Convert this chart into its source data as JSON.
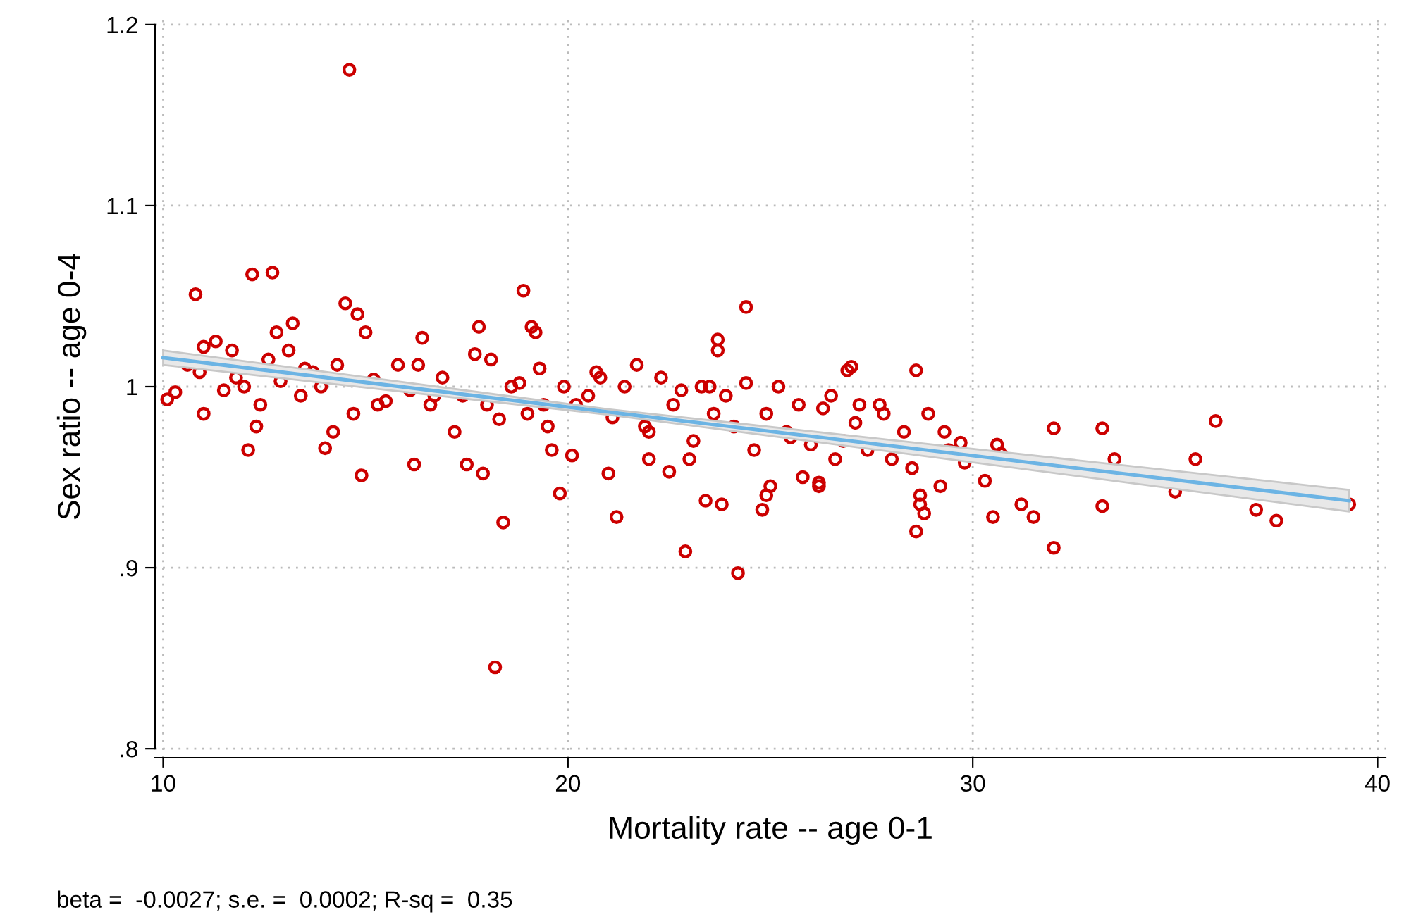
{
  "chart_data": {
    "type": "scatter",
    "xlabel": "Mortality rate -- age 0-1",
    "ylabel": "Sex ratio -- age 0-4",
    "xlim": [
      9.8,
      40.2
    ],
    "xticks": [
      10,
      20,
      30,
      40
    ],
    "ylim": [
      0.795,
      1.205
    ],
    "yticks": [
      {
        "value": 0.8,
        "label": ".8"
      },
      {
        "value": 0.9,
        "label": ".9"
      },
      1,
      1.1,
      1.2
    ],
    "grid": true,
    "annotations": [
      "beta =  -0.0027; s.e. =  0.0002; R-sq =  0.35"
    ],
    "series": [
      {
        "marker": "circle",
        "color": "#cc0000",
        "x": [
          14.6,
          18.2,
          24.2,
          22.9,
          18.4,
          39.3,
          37.0,
          37.5,
          36.0,
          35.5,
          35.0,
          33.2,
          33.5,
          32.0,
          32.0,
          31.5,
          31.2,
          30.6,
          30.7,
          33.2,
          30.5,
          29.7,
          29.3,
          29.2,
          28.7,
          28.7,
          28.8,
          28.6,
          28.6,
          27.0,
          26.9,
          27.2,
          26.2,
          26.2,
          25.8,
          25.0,
          24.9,
          24.8,
          24.4,
          23.7,
          23.7,
          23.4,
          23.8,
          21.2,
          18.9,
          19.2,
          19.1,
          17.8,
          15.0,
          14.8,
          10.1,
          10.3,
          10.8,
          11.0,
          11.0,
          12.2,
          12.7,
          12.1,
          13.2,
          14.5,
          14.9,
          14.0,
          14.2,
          16.2,
          17.5,
          17.9,
          19.8,
          19.6,
          20.1,
          21.0,
          22.0,
          23.0,
          22.5,
          10.6,
          10.9,
          11.3,
          11.5,
          11.8,
          12.0,
          12.4,
          12.6,
          12.9,
          13.1,
          13.4,
          13.7,
          13.9,
          14.3,
          14.7,
          15.2,
          15.5,
          15.8,
          16.1,
          16.4,
          16.6,
          16.9,
          17.2,
          17.4,
          17.7,
          18.0,
          18.3,
          18.6,
          18.8,
          19.0,
          19.3,
          19.5,
          19.9,
          20.2,
          20.5,
          20.8,
          21.1,
          21.4,
          21.7,
          22.0,
          22.3,
          22.6,
          22.8,
          23.1,
          23.3,
          23.6,
          23.9,
          24.1,
          24.4,
          24.6,
          24.9,
          25.2,
          25.4,
          25.7,
          26.0,
          26.3,
          26.5,
          26.8,
          27.1,
          27.4,
          27.7,
          28.0,
          28.3,
          28.5,
          28.9,
          29.4,
          29.8,
          30.3,
          11.7,
          12.8,
          13.5,
          15.3,
          16.7,
          18.1,
          19.4,
          20.7,
          21.9,
          23.5,
          25.5,
          26.6,
          27.8,
          16.3,
          12.3
        ],
        "values": [
          1.175,
          0.845,
          0.897,
          0.909,
          0.925,
          0.935,
          0.932,
          0.926,
          0.981,
          0.96,
          0.942,
          0.977,
          0.96,
          0.977,
          0.911,
          0.928,
          0.935,
          0.968,
          0.963,
          0.934,
          0.928,
          0.969,
          0.975,
          0.945,
          0.94,
          0.935,
          0.93,
          0.92,
          1.009,
          1.011,
          1.009,
          0.99,
          0.945,
          0.947,
          0.95,
          0.945,
          0.94,
          0.932,
          1.044,
          1.026,
          1.02,
          0.937,
          0.935,
          0.928,
          1.053,
          1.03,
          1.033,
          1.033,
          1.03,
          1.04,
          0.993,
          0.997,
          1.051,
          1.022,
          0.985,
          1.062,
          1.063,
          0.965,
          1.035,
          1.046,
          0.951,
          0.966,
          0.975,
          0.957,
          0.957,
          0.952,
          0.941,
          0.965,
          0.962,
          0.952,
          0.96,
          0.96,
          0.953,
          1.012,
          1.008,
          1.025,
          0.998,
          1.005,
          1.0,
          0.99,
          1.015,
          1.003,
          1.02,
          0.995,
          1.008,
          1.0,
          1.012,
          0.985,
          1.004,
          0.992,
          1.012,
          0.998,
          1.027,
          0.99,
          1.005,
          0.975,
          0.995,
          1.018,
          0.99,
          0.982,
          1.0,
          1.002,
          0.985,
          1.01,
          0.978,
          1.0,
          0.99,
          0.995,
          1.005,
          0.983,
          1.0,
          1.012,
          0.975,
          1.005,
          0.99,
          0.998,
          0.97,
          1.0,
          0.985,
          0.995,
          0.978,
          1.002,
          0.965,
          0.985,
          1.0,
          0.975,
          0.99,
          0.968,
          0.988,
          0.995,
          0.97,
          0.98,
          0.965,
          0.99,
          0.96,
          0.975,
          0.955,
          0.985,
          0.965,
          0.958,
          0.948,
          1.02,
          1.03,
          1.01,
          0.99,
          0.995,
          1.015,
          0.99,
          1.008,
          0.978,
          1.0,
          0.972,
          0.96,
          0.985,
          1.012,
          0.978
        ]
      },
      {
        "type": "line",
        "marker": "none",
        "color": "#6cb4e4",
        "x": [
          10,
          21,
          39.3
        ],
        "values": [
          1.016,
          0.986,
          0.937
        ],
        "lower": [
          1.012,
          0.9845,
          0.931
        ],
        "upper": [
          1.02,
          0.9875,
          0.943
        ]
      }
    ]
  }
}
